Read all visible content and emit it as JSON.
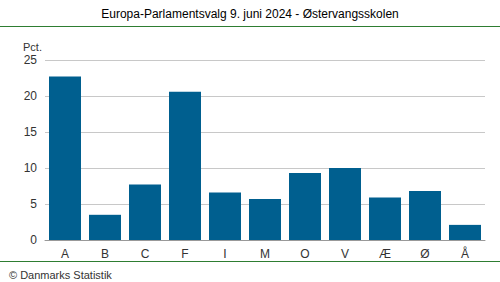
{
  "chart_data": {
    "type": "bar",
    "title": "Europa-Parlamentsvalg 9. juni 2024 - Østervangsskolen",
    "y_label": "Pct.",
    "source": "© Danmarks Statistik",
    "categories": [
      "A",
      "B",
      "C",
      "F",
      "I",
      "M",
      "O",
      "V",
      "Æ",
      "Ø",
      "Å"
    ],
    "values": [
      22.7,
      3.5,
      7.7,
      20.6,
      6.6,
      5.7,
      9.3,
      10.0,
      5.9,
      6.8,
      2.1
    ],
    "color": "#005f8f",
    "ylim": [
      0,
      25
    ],
    "yticks": [
      0,
      5,
      10,
      15,
      20,
      25
    ],
    "grid": true
  }
}
